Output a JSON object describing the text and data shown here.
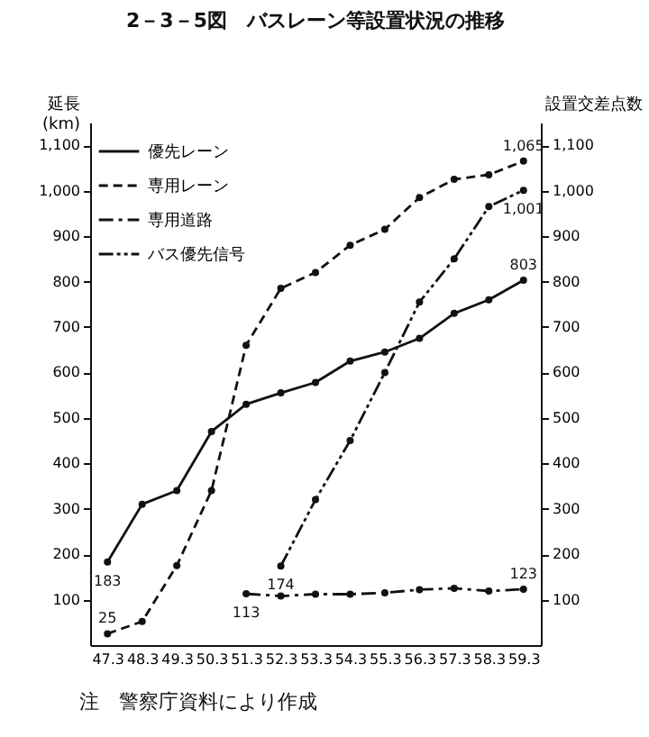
{
  "chart_data": {
    "type": "line",
    "title": "2－3－5図　バスレーン等設置状況の推移",
    "xlabel": null,
    "ylabel": "延長\n(km)",
    "y2label": "設置交差点数",
    "annotations": [
      "注　警察庁資料により作成"
    ],
    "categories": [
      "47.3",
      "48.3",
      "49.3",
      "50.3",
      "51.3",
      "52.3",
      "53.3",
      "54.3",
      "55.3",
      "56.3",
      "57.3",
      "58.3",
      "59.3"
    ],
    "series": [
      {
        "name": "優先レーン",
        "color": "#111111",
        "line_style": "solid",
        "values": [
          183,
          310,
          340,
          470,
          530,
          555,
          578,
          625,
          645,
          675,
          730,
          760,
          803
        ],
        "value_labels": [
          "183",
          null,
          null,
          null,
          null,
          null,
          null,
          null,
          null,
          null,
          null,
          null,
          "803"
        ]
      },
      {
        "name": "専用レーン",
        "color": "#111111",
        "line_style": "dashed",
        "values": [
          25,
          52,
          175,
          340,
          660,
          785,
          820,
          880,
          915,
          985,
          1025,
          1035,
          1065
        ],
        "value_labels": [
          "25",
          null,
          null,
          null,
          null,
          null,
          null,
          null,
          null,
          null,
          null,
          null,
          "1,065"
        ]
      },
      {
        "name": "専用道路",
        "color": "#111111",
        "line_style": "dashdot",
        "values": [
          null,
          null,
          null,
          null,
          113,
          108,
          112,
          112,
          115,
          122,
          125,
          119,
          123
        ],
        "value_labels": [
          null,
          null,
          null,
          null,
          "113",
          null,
          null,
          null,
          null,
          null,
          null,
          null,
          "123"
        ]
      },
      {
        "name": "バス優先信号",
        "color": "#111111",
        "line_style": "dashdotdot",
        "axis": "y2",
        "values": [
          null,
          null,
          null,
          null,
          null,
          174,
          320,
          450,
          600,
          755,
          850,
          965,
          1001
        ],
        "value_labels": [
          null,
          null,
          null,
          null,
          null,
          "174",
          null,
          null,
          null,
          null,
          null,
          null,
          "1,001"
        ]
      }
    ],
    "ylim": [
      0,
      1150
    ],
    "yticks": [
      100,
      200,
      300,
      400,
      500,
      600,
      700,
      800,
      900,
      {
        "value": 1000,
        "label": "1,000"
      },
      {
        "value": 1100,
        "label": "1,100"
      }
    ],
    "y2lim": [
      0,
      1150
    ],
    "y2ticks": [
      100,
      200,
      300,
      400,
      500,
      600,
      700,
      800,
      900,
      {
        "value": 1000,
        "label": "1,000"
      },
      {
        "value": 1100,
        "label": "1,100"
      }
    ],
    "grid": false,
    "legend": "top left",
    "marker": "circle"
  }
}
